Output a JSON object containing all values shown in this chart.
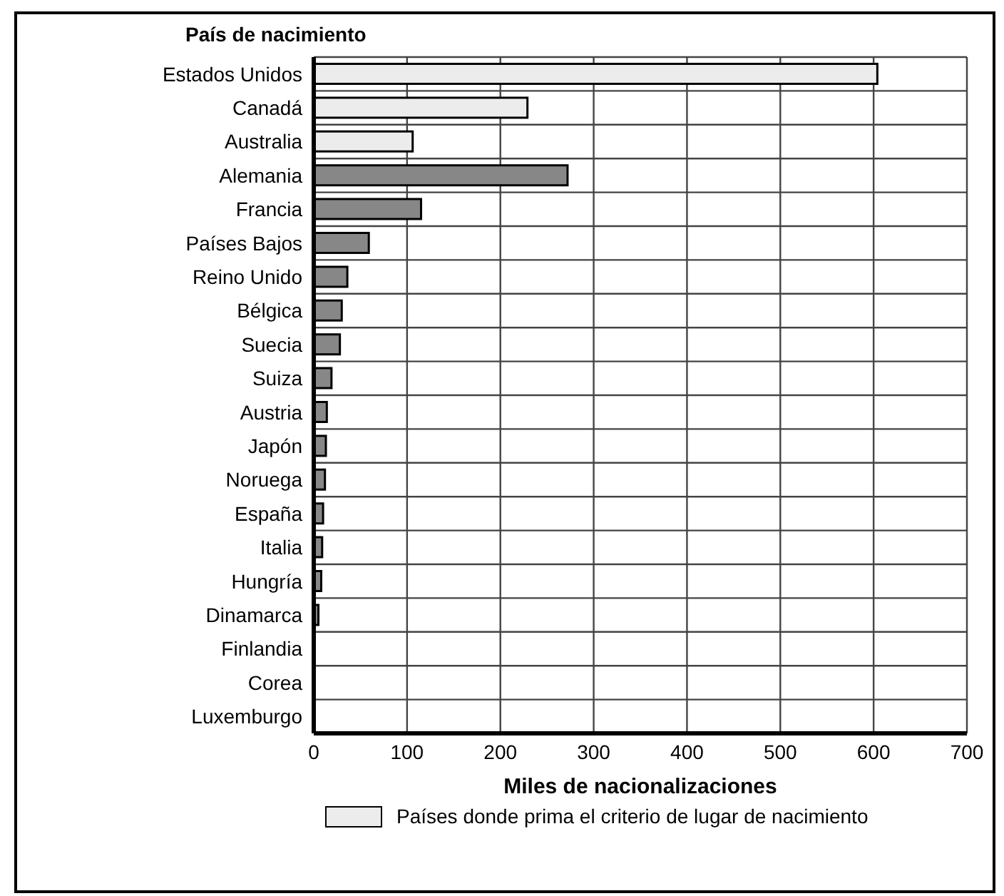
{
  "chart_data": {
    "type": "bar",
    "orientation": "horizontal",
    "stacked": true,
    "title": "País de nacimiento",
    "xlabel": "Miles de nacionalizaciones",
    "categories": [
      "Estados Unidos",
      "Canadá",
      "Australia",
      "Alemania",
      "Francia",
      "Países Bajos",
      "Reino Unido",
      "Bélgica",
      "Suecia",
      "Suiza",
      "Austria",
      "Japón",
      "Noruega",
      "España",
      "Italia",
      "Hungría",
      "Dinamarca",
      "Finlandia",
      "Corea",
      "Luxemburgo"
    ],
    "series": [
      {
        "name": "Países donde prima el criterio de lugar de nacimiento",
        "color": "#ececec",
        "values": [
          604,
          229,
          106,
          null,
          null,
          null,
          null,
          null,
          null,
          null,
          null,
          null,
          null,
          null,
          null,
          null,
          null,
          null,
          null,
          null
        ]
      },
      {
        "color": "#878787",
        "values": [
          null,
          null,
          null,
          272,
          115,
          59,
          36,
          30,
          28,
          19,
          14,
          13,
          12,
          10,
          9,
          8,
          5,
          0,
          0,
          0
        ]
      }
    ],
    "xlim": [
      0,
      700
    ],
    "xticks": [
      0,
      100,
      200,
      300,
      400,
      500,
      600,
      700
    ],
    "grid": true,
    "legend": "bottom"
  }
}
